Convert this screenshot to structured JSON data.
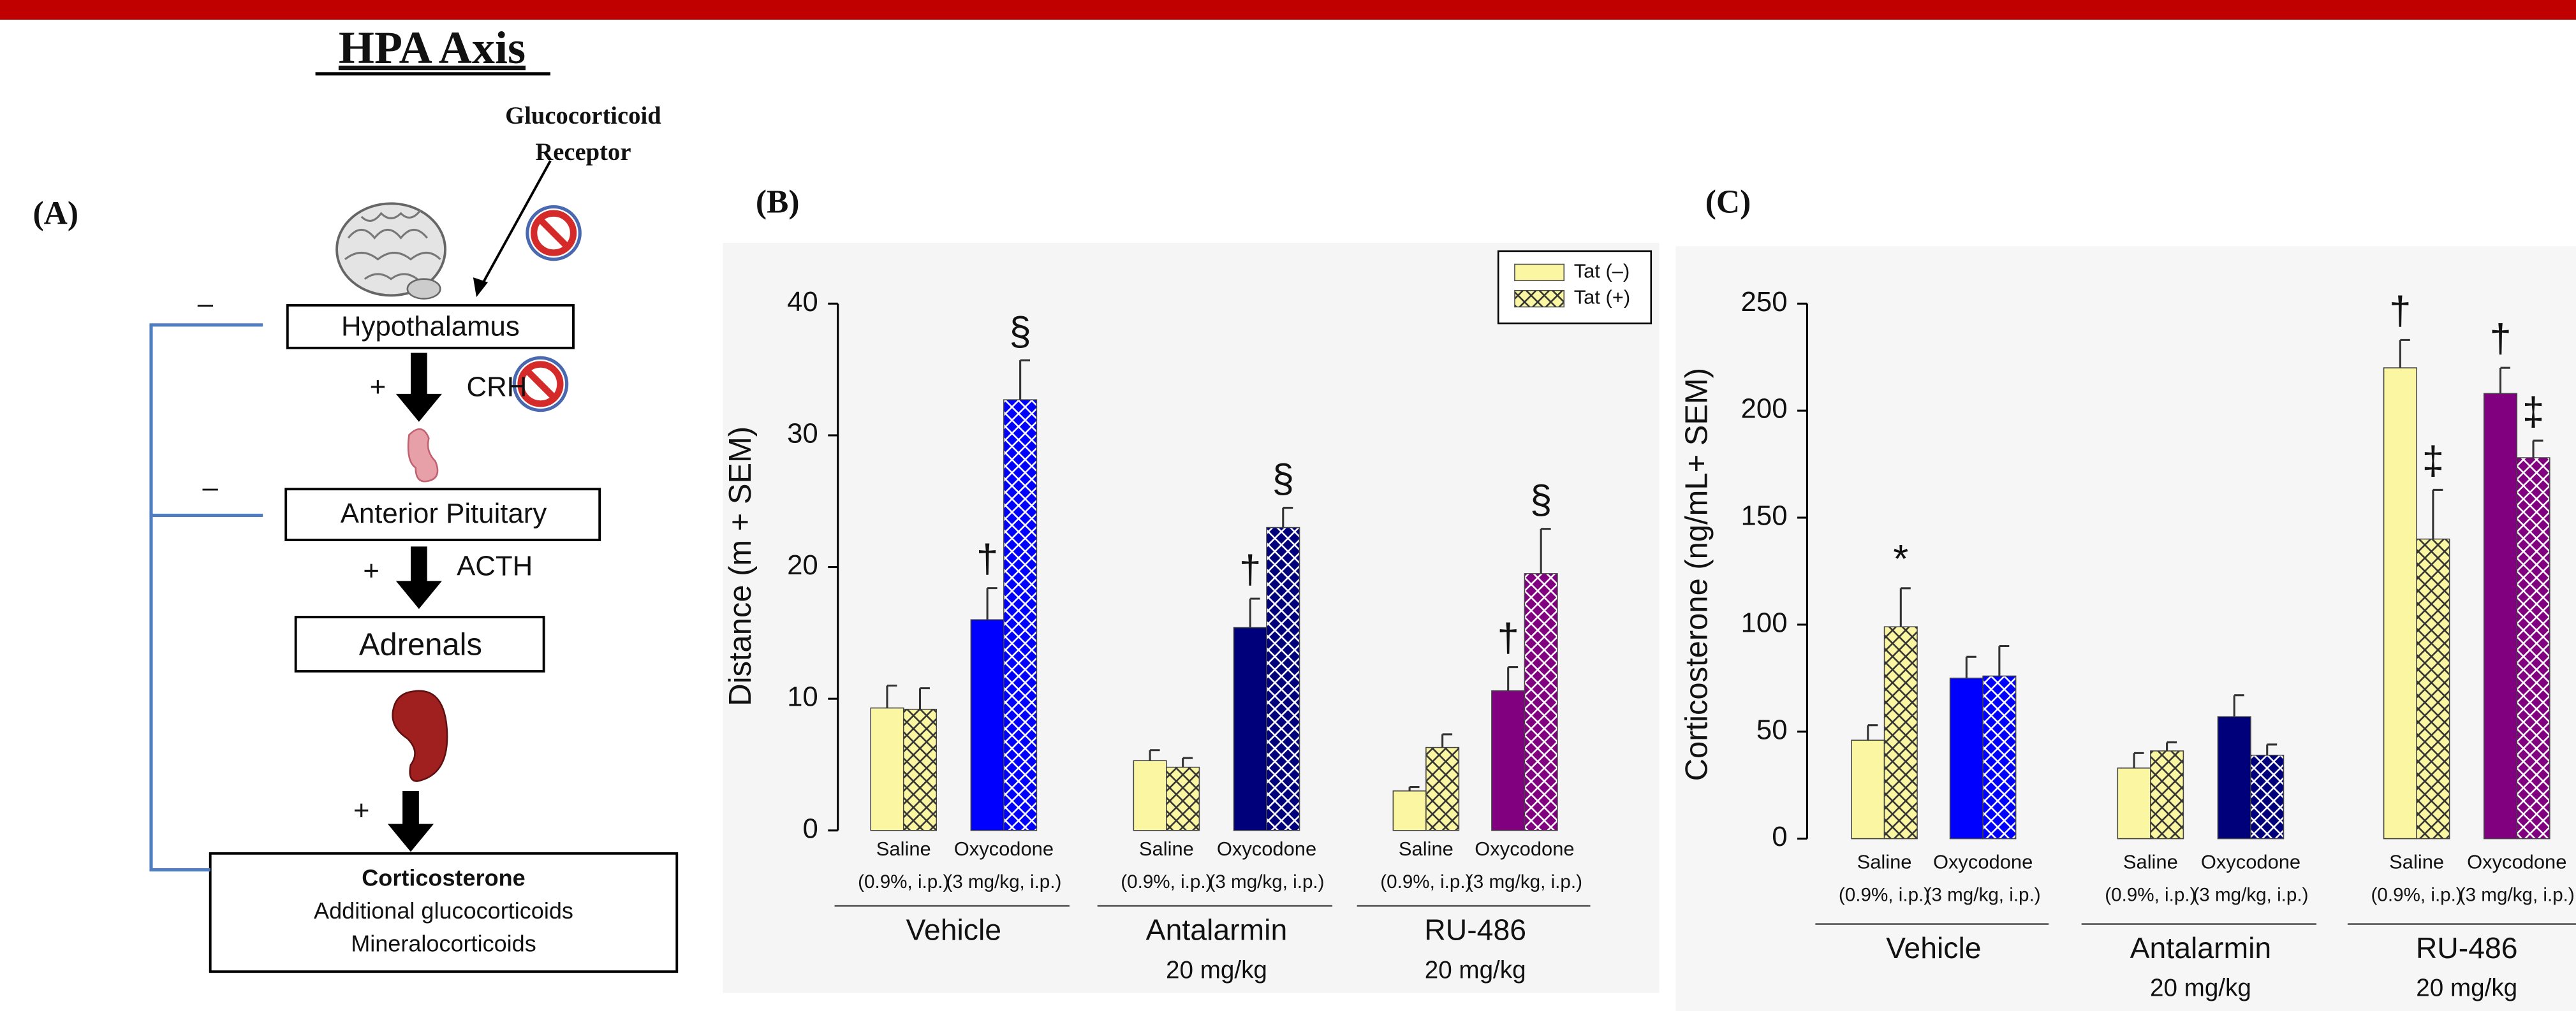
{
  "diagram": {
    "title": "HPA Axis",
    "panel_label": "(A)",
    "receptor_label": [
      "Glucocorticoid",
      "Receptor"
    ],
    "boxes": [
      "Hypothalamus",
      "Anterior Pituitary",
      "Adrenals"
    ],
    "output_box": [
      "Corticosterone",
      "Additional glucocorticoids",
      "Mineralocorticoids"
    ],
    "arrow_labels": [
      "CRH",
      "ACTH"
    ],
    "signs": [
      "–",
      "–",
      "+",
      "+",
      "+"
    ]
  },
  "chart_data": [
    {
      "type": "bar",
      "panel_label": "(B)",
      "y_label": "Distance (m + SEM)",
      "ylim": [
        0,
        40
      ],
      "yticks": [
        0,
        10,
        20,
        30,
        40
      ],
      "legend": true,
      "legend_position": "upper right",
      "categories": [
        "Saline",
        "Oxycodone",
        "Saline",
        "Oxycodone",
        "Saline",
        "Oxycodone"
      ],
      "category_notes": [
        "(0.9%, i.p.)",
        "(3 mg/kg, i.p.)",
        "(0.9%, i.p.)",
        "(3 mg/kg, i.p.)",
        "(0.9%, i.p.)",
        "(3 mg/kg, i.p.)"
      ],
      "groups": [
        {
          "label": "Vehicle"
        },
        {
          "label": "Antalarmin",
          "note": "20 mg/kg"
        },
        {
          "label": "RU-486",
          "note": "20 mg/kg"
        }
      ],
      "series": [
        {
          "name": "Tat (–)",
          "hatch": false,
          "colors": [
            "#faf6a2",
            "#0000ff",
            "#faf6a2",
            "#00007a",
            "#faf6a2",
            "#800080"
          ],
          "values": [
            9.3,
            16,
            5.3,
            15.4,
            3,
            10.6
          ],
          "errors": [
            1.7,
            2.4,
            0.8,
            2.2,
            0.3,
            1.8
          ],
          "annotations": [
            null,
            "†",
            null,
            "†",
            null,
            "†"
          ]
        },
        {
          "name": "Tat (+)",
          "hatch": true,
          "colors": [
            "#faf6a2",
            "#0000ff",
            "#faf6a2",
            "#00007a",
            "#faf6a2",
            "#800080"
          ],
          "values": [
            9.2,
            32.7,
            4.8,
            23,
            6.3,
            19.5
          ],
          "errors": [
            1.6,
            3,
            0.7,
            1.5,
            1,
            3.4
          ],
          "annotations": [
            null,
            "§",
            null,
            "§",
            null,
            "§"
          ]
        }
      ]
    },
    {
      "type": "bar",
      "panel_label": "(C)",
      "y_label": "Corticosterone (ng/mL+ SEM)",
      "ylim": [
        0,
        250
      ],
      "yticks": [
        0,
        50,
        100,
        150,
        200,
        250
      ],
      "legend": false,
      "categories": [
        "Saline",
        "Oxycodone",
        "Saline",
        "Oxycodone",
        "Saline",
        "Oxycodone"
      ],
      "category_notes": [
        "(0.9%, i.p.)",
        "(3 mg/kg, i.p.)",
        "(0.9%, i.p.)",
        "(3 mg/kg, i.p.)",
        "(0.9%, i.p.)",
        "(3 mg/kg, i.p.)"
      ],
      "groups": [
        {
          "label": "Vehicle"
        },
        {
          "label": "Antalarmin",
          "note": "20 mg/kg"
        },
        {
          "label": "RU-486",
          "note": "20 mg/kg"
        }
      ],
      "series": [
        {
          "hatch": false,
          "colors": [
            "#faf6a2",
            "#0000ff",
            "#faf6a2",
            "#00007a",
            "#faf6a2",
            "#800080"
          ],
          "values": [
            46,
            75,
            33,
            57,
            220,
            208
          ],
          "errors": [
            7,
            10,
            7,
            10,
            13,
            12
          ],
          "annotations": [
            null,
            null,
            null,
            null,
            "†",
            "†"
          ]
        },
        {
          "hatch": true,
          "colors": [
            "#faf6a2",
            "#0000ff",
            "#faf6a2",
            "#00007a",
            "#faf6a2",
            "#800080"
          ],
          "values": [
            99,
            76,
            41,
            39,
            140,
            178
          ],
          "errors": [
            18,
            14,
            4,
            5,
            23,
            8
          ],
          "annotations": [
            "*",
            null,
            null,
            null,
            "‡",
            "‡"
          ]
        }
      ]
    }
  ]
}
